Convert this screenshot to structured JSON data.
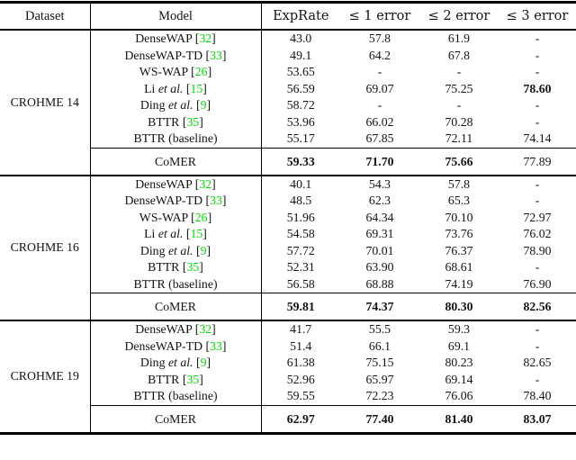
{
  "labels": {
    "etal": "et al."
  },
  "colors": {
    "citation_green": "#00dd00",
    "rule_black": "#000000",
    "background": "#ffffff"
  },
  "paper_table": {
    "header": {
      "dataset": "Dataset",
      "model": "Model",
      "metrics": [
        "ExpRate",
        "≤ 1 error",
        "≤ 2 error",
        "≤ 3 error"
      ]
    },
    "sections": [
      {
        "dataset": "CROHME 14",
        "rows": [
          {
            "model": "DenseWAP",
            "etal": false,
            "cite": "32",
            "values": [
              "43.0",
              "57.8",
              "61.9",
              "-"
            ],
            "bold": [
              0,
              0,
              0,
              0
            ]
          },
          {
            "model": "DenseWAP-TD",
            "etal": false,
            "cite": "33",
            "values": [
              "49.1",
              "64.2",
              "67.8",
              "-"
            ],
            "bold": [
              0,
              0,
              0,
              0
            ]
          },
          {
            "model": "WS-WAP",
            "etal": false,
            "cite": "26",
            "values": [
              "53.65",
              "-",
              "-",
              "-"
            ],
            "bold": [
              0,
              0,
              0,
              0
            ]
          },
          {
            "model": "Li",
            "etal": true,
            "cite": "15",
            "values": [
              "56.59",
              "69.07",
              "75.25",
              "78.60"
            ],
            "bold": [
              0,
              0,
              0,
              1
            ]
          },
          {
            "model": "Ding",
            "etal": true,
            "cite": "9",
            "values": [
              "58.72",
              "-",
              "-",
              "-"
            ],
            "bold": [
              0,
              0,
              0,
              0
            ]
          },
          {
            "model": "BTTR",
            "etal": false,
            "cite": "35",
            "values": [
              "53.96",
              "66.02",
              "70.28",
              "-"
            ],
            "bold": [
              0,
              0,
              0,
              0
            ]
          },
          {
            "model": "BTTR (baseline)",
            "etal": false,
            "cite": "",
            "values": [
              "55.17",
              "67.85",
              "72.11",
              "74.14"
            ],
            "bold": [
              0,
              0,
              0,
              0
            ]
          }
        ],
        "comer": {
          "model": "CoMER",
          "values": [
            "59.33",
            "71.70",
            "75.66",
            "77.89"
          ],
          "bold": [
            1,
            1,
            1,
            0
          ]
        }
      },
      {
        "dataset": "CROHME 16",
        "rows": [
          {
            "model": "DenseWAP",
            "etal": false,
            "cite": "32",
            "values": [
              "40.1",
              "54.3",
              "57.8",
              "-"
            ],
            "bold": [
              0,
              0,
              0,
              0
            ]
          },
          {
            "model": "DenseWAP-TD",
            "etal": false,
            "cite": "33",
            "values": [
              "48.5",
              "62.3",
              "65.3",
              "-"
            ],
            "bold": [
              0,
              0,
              0,
              0
            ]
          },
          {
            "model": "WS-WAP",
            "etal": false,
            "cite": "26",
            "values": [
              "51.96",
              "64.34",
              "70.10",
              "72.97"
            ],
            "bold": [
              0,
              0,
              0,
              0
            ]
          },
          {
            "model": "Li",
            "etal": true,
            "cite": "15",
            "values": [
              "54.58",
              "69.31",
              "73.76",
              "76.02"
            ],
            "bold": [
              0,
              0,
              0,
              0
            ]
          },
          {
            "model": "Ding",
            "etal": true,
            "cite": "9",
            "values": [
              "57.72",
              "70.01",
              "76.37",
              "78.90"
            ],
            "bold": [
              0,
              0,
              0,
              0
            ]
          },
          {
            "model": "BTTR",
            "etal": false,
            "cite": "35",
            "values": [
              "52.31",
              "63.90",
              "68.61",
              "-"
            ],
            "bold": [
              0,
              0,
              0,
              0
            ]
          },
          {
            "model": "BTTR (baseline)",
            "etal": false,
            "cite": "",
            "values": [
              "56.58",
              "68.88",
              "74.19",
              "76.90"
            ],
            "bold": [
              0,
              0,
              0,
              0
            ]
          }
        ],
        "comer": {
          "model": "CoMER",
          "values": [
            "59.81",
            "74.37",
            "80.30",
            "82.56"
          ],
          "bold": [
            1,
            1,
            1,
            1
          ]
        }
      },
      {
        "dataset": "CROHME 19",
        "rows": [
          {
            "model": "DenseWAP",
            "etal": false,
            "cite": "32",
            "values": [
              "41.7",
              "55.5",
              "59.3",
              "-"
            ],
            "bold": [
              0,
              0,
              0,
              0
            ]
          },
          {
            "model": "DenseWAP-TD",
            "etal": false,
            "cite": "33",
            "values": [
              "51.4",
              "66.1",
              "69.1",
              "-"
            ],
            "bold": [
              0,
              0,
              0,
              0
            ]
          },
          {
            "model": "Ding",
            "etal": true,
            "cite": "9",
            "values": [
              "61.38",
              "75.15",
              "80.23",
              "82.65"
            ],
            "bold": [
              0,
              0,
              0,
              0
            ]
          },
          {
            "model": "BTTR",
            "etal": false,
            "cite": "35",
            "values": [
              "52.96",
              "65.97",
              "69.14",
              "-"
            ],
            "bold": [
              0,
              0,
              0,
              0
            ]
          },
          {
            "model": "BTTR (baseline)",
            "etal": false,
            "cite": "",
            "values": [
              "59.55",
              "72.23",
              "76.06",
              "78.40"
            ],
            "bold": [
              0,
              0,
              0,
              0
            ]
          }
        ],
        "comer": {
          "model": "CoMER",
          "values": [
            "62.97",
            "77.40",
            "81.40",
            "83.07"
          ],
          "bold": [
            1,
            1,
            1,
            1
          ]
        }
      }
    ]
  }
}
